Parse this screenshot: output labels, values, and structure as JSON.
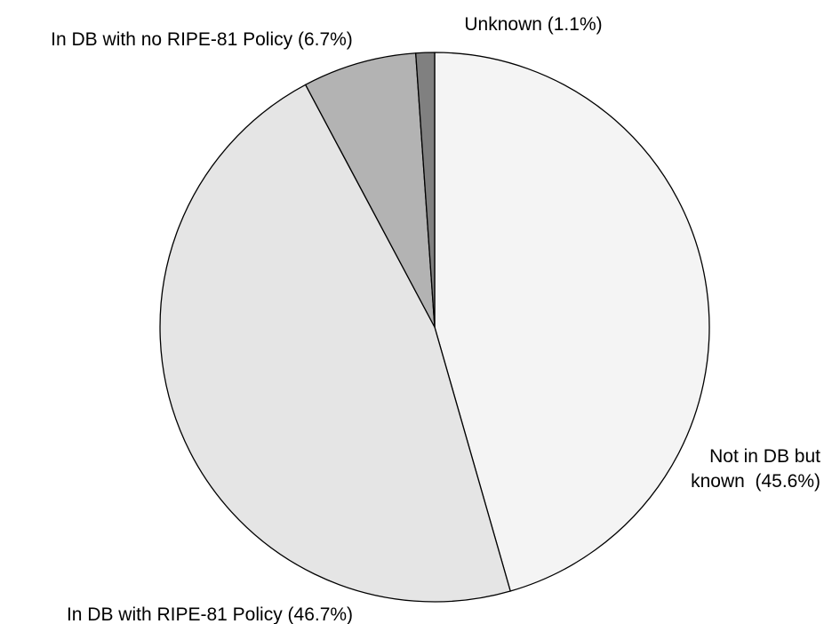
{
  "chart_data": {
    "type": "pie",
    "title": "",
    "start_angle_deg": 0,
    "direction": "clockwise",
    "slices": [
      {
        "name": "Not in DB but known",
        "value": 45.6,
        "label_lines": [
          "Not in DB but",
          "known  (45.6%)"
        ],
        "color": "#f4f4f4"
      },
      {
        "name": "In DB with RIPE-81 Policy",
        "value": 46.7,
        "label_lines": [
          "In DB with RIPE-81 Policy (46.7%)"
        ],
        "color": "#e5e5e5"
      },
      {
        "name": "In DB with no RIPE-81 Policy",
        "value": 6.7,
        "label_lines": [
          "In DB with no RIPE-81 Policy (6.7%)"
        ],
        "color": "#b3b3b3"
      },
      {
        "name": "Unknown",
        "value": 1.1,
        "label_lines": [
          "Unknown (1.1%)"
        ],
        "color": "#808080"
      }
    ]
  }
}
